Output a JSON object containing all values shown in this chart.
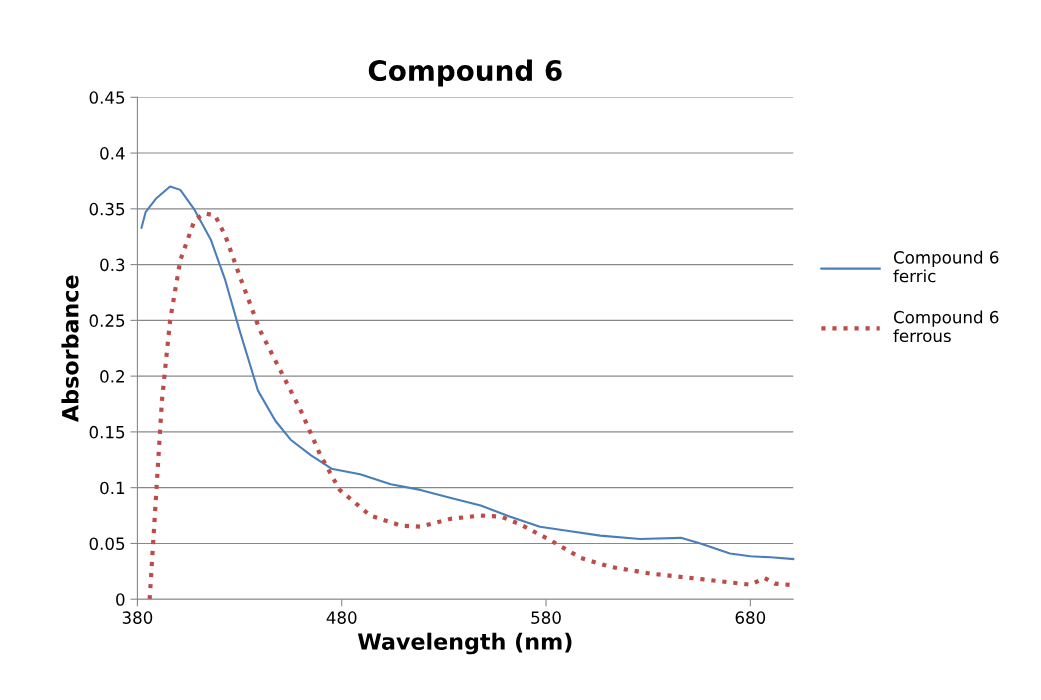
{
  "chart_data": {
    "type": "line",
    "title": "Compound 6",
    "xlabel": "Wavelength (nm)",
    "ylabel": "Absorbance",
    "xlim": [
      380,
      701
    ],
    "xticks": [
      380,
      480,
      580,
      680
    ],
    "ylim": [
      0,
      0.45
    ],
    "yticks": [
      0,
      0.05,
      0.1,
      0.15,
      0.2,
      0.25,
      0.3,
      0.35,
      0.4,
      0.45
    ],
    "grid": "y",
    "legend": "right",
    "marker": "none",
    "series": [
      {
        "name": "Compound 6\nferric",
        "color": "#4a7ebb",
        "line_style": "solid",
        "x": [
          382,
          384,
          389,
          396,
          401,
          408,
          416,
          423,
          430,
          439,
          447.5,
          455,
          465,
          475,
          489,
          504,
          518.5,
          533,
          548,
          562.5,
          577,
          592,
          606.6,
          626,
          646,
          655.6,
          670,
          680,
          690,
          701
        ],
        "values": [
          0.333,
          0.347,
          0.359,
          0.37,
          0.367,
          0.349,
          0.322,
          0.286,
          0.241,
          0.187,
          0.16,
          0.143,
          0.129,
          0.117,
          0.112,
          0.103,
          0.098,
          0.091,
          0.084,
          0.074,
          0.065,
          0.061,
          0.057,
          0.054,
          0.055,
          0.05,
          0.041,
          0.0385,
          0.0376,
          0.036
        ]
      },
      {
        "name": "Compound 6\nferrous",
        "color": "#be4b48",
        "line_style": "dotted",
        "x": [
          386,
          389,
          392,
          396,
          401,
          408,
          413,
          418,
          423,
          430,
          440,
          450,
          460,
          469.6,
          479,
          494,
          509,
          518.5,
          533,
          548,
          558,
          567.5,
          582,
          597,
          611.5,
          631,
          656,
          680,
          687,
          692,
          701
        ],
        "values": [
          0,
          0.089,
          0.178,
          0.25,
          0.304,
          0.34,
          0.346,
          0.344,
          0.326,
          0.29,
          0.241,
          0.205,
          0.169,
          0.129,
          0.098,
          0.075,
          0.066,
          0.065,
          0.072,
          0.075,
          0.074,
          0.067,
          0.053,
          0.037,
          0.029,
          0.023,
          0.018,
          0.013,
          0.019,
          0.014,
          0.0125
        ]
      }
    ]
  }
}
